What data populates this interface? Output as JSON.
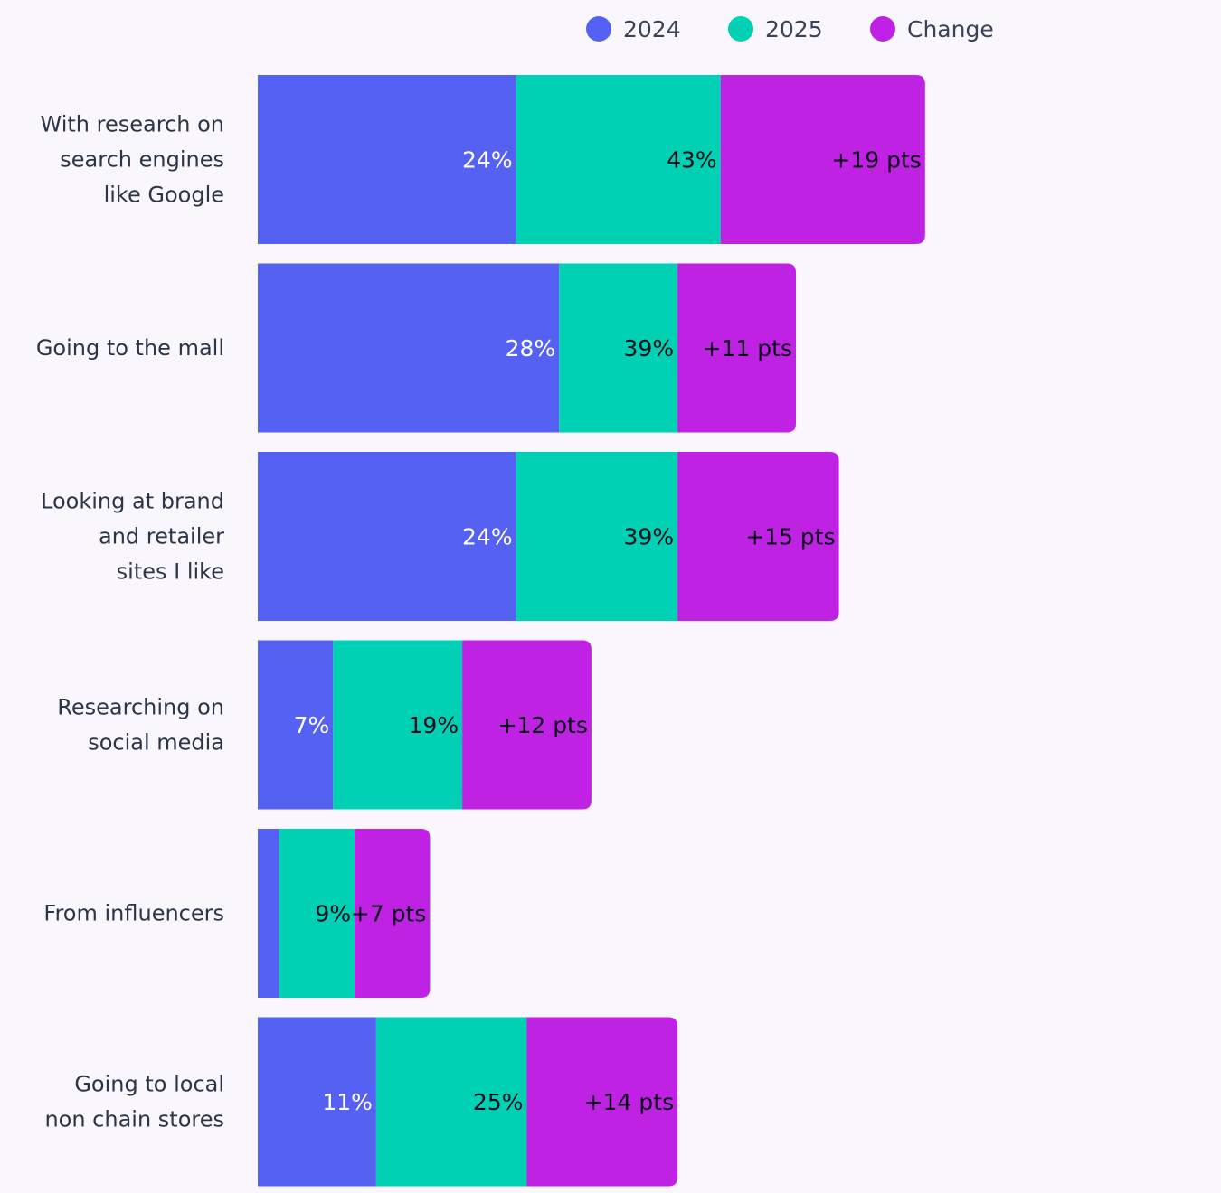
{
  "colors": {
    "s2024": "#5561f2",
    "s2025": "#00d0b4",
    "change": "#c022e3",
    "background": "#f9f7fd",
    "label_text": "#2c3447"
  },
  "chart_data": {
    "type": "bar",
    "orientation": "horizontal",
    "stacked": true,
    "legend": {
      "position": "top-right",
      "entries": [
        "2024",
        "2025",
        "Change"
      ]
    },
    "categories": [
      [
        "With research on",
        "search engines",
        "like Google"
      ],
      [
        "Going to the mall"
      ],
      [
        "Looking at brand",
        "and retailer",
        "sites I like"
      ],
      [
        "Researching on",
        "social media"
      ],
      [
        "From influencers"
      ],
      [
        "Going to local",
        "non chain stores"
      ]
    ],
    "series": [
      {
        "name": "2024",
        "values": [
          24,
          28,
          24,
          7,
          2,
          11
        ]
      },
      {
        "name": "2025",
        "values": [
          43,
          39,
          39,
          19,
          9,
          25
        ]
      },
      {
        "name": "Change",
        "values": [
          19,
          11,
          15,
          12,
          7,
          14
        ]
      }
    ],
    "data_labels": {
      "2024": [
        "24%",
        "28%",
        "24%",
        "7%",
        "",
        "11%"
      ],
      "2025": [
        "43%",
        "39%",
        "39%",
        "19%",
        "9%",
        "25%"
      ],
      "Change": [
        "+19 pts",
        "+11 pts",
        "+15 pts",
        "+12 pts",
        "+7 pts",
        "+14 pts"
      ]
    }
  }
}
